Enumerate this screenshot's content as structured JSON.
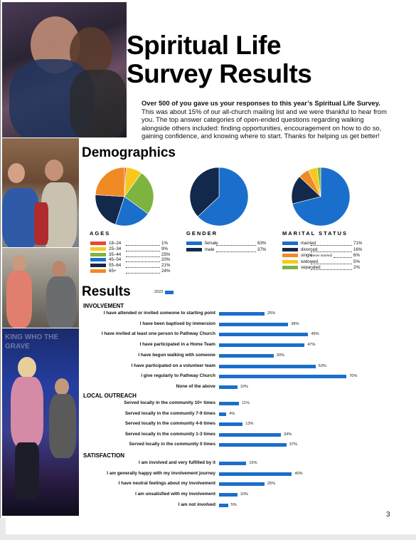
{
  "header": {
    "title_line1": "Spiritual Life",
    "title_line2": "Survey Results",
    "intro_bold": "Over 500 of you gave us your responses to this year’s Spiritual Life Survey.",
    "intro_rest": " This was about 15% of our all-church mailing list and we were thankful to hear from you. The top answer categories of open-ended questions regarding walking alongside others included: finding opportunities, encouragement on how to do so, gaining confidence, and knowing where to start. Thanks for helping us get better!"
  },
  "demographics": {
    "heading": "Demographics",
    "ages": {
      "title": "AGES",
      "items": [
        {
          "label": "18–24",
          "pct": "1%",
          "value": 1,
          "color": "#e9453a"
        },
        {
          "label": "25–34",
          "pct": "9%",
          "value": 9,
          "color": "#f7c81e"
        },
        {
          "label": "35–44",
          "pct": "25%",
          "value": 25,
          "color": "#7cb43f"
        },
        {
          "label": "45–54",
          "pct": "20%",
          "value": 20,
          "color": "#1b6fcc"
        },
        {
          "label": "55–64",
          "pct": "21%",
          "value": 21,
          "color": "#13294b"
        },
        {
          "label": "65+",
          "pct": "24%",
          "value": 24,
          "color": "#f08a24"
        }
      ]
    },
    "gender": {
      "title": "GENDER",
      "items": [
        {
          "label": "female",
          "pct": "63%",
          "value": 63,
          "color": "#1b6fcc"
        },
        {
          "label": "male",
          "pct": "37%",
          "value": 37,
          "color": "#13294b"
        }
      ]
    },
    "marital": {
      "title": "MARITAL STATUS",
      "items": [
        {
          "label": "married",
          "note": "",
          "pct": "71%",
          "value": 71,
          "color": "#1b6fcc"
        },
        {
          "label": "divorced",
          "note": "",
          "pct": "16%",
          "value": 16,
          "color": "#13294b"
        },
        {
          "label": "single",
          "note": "(never married)",
          "pct": "6%",
          "value": 6,
          "color": "#f08a24"
        },
        {
          "label": "widowed",
          "note": "",
          "pct": "5%",
          "value": 5,
          "color": "#f7c81e"
        },
        {
          "label": "separated",
          "note": "",
          "pct": "2%",
          "value": 2,
          "color": "#7cb43f"
        }
      ]
    }
  },
  "results": {
    "heading": "Results",
    "legend_label": "2023",
    "bar_color": "#1b6fcc",
    "sections": [
      {
        "title": "INVOLVEMENT",
        "items": [
          {
            "label": "I have attended or invited someone to starting point",
            "pct": "25%",
            "value": 25
          },
          {
            "label": "I have been baptised by immersion",
            "pct": "38%",
            "value": 38
          },
          {
            "label": "I have invited at least one person to Pathway Church",
            "pct": "49%",
            "value": 49
          },
          {
            "label": "I have participated in a Home Team",
            "pct": "47%",
            "value": 47
          },
          {
            "label": "I have begun walking with someone",
            "pct": "30%",
            "value": 30
          },
          {
            "label": "I have participated on a volunteer team",
            "pct": "53%",
            "value": 53
          },
          {
            "label": "I give regularly to Pathway Church",
            "pct": "70%",
            "value": 70
          },
          {
            "label": "None of the above",
            "pct": "10%",
            "value": 10
          }
        ]
      },
      {
        "title": "LOCAL OUTREACH",
        "items": [
          {
            "label": "Served locally in the community 10+ times",
            "pct": "11%",
            "value": 11
          },
          {
            "label": "Served locally in the community 7-9 times",
            "pct": "4%",
            "value": 4
          },
          {
            "label": "Served locally in the community 4-6 times",
            "pct": "13%",
            "value": 13
          },
          {
            "label": "Served locally in the community 1-3  times",
            "pct": "34%",
            "value": 34
          },
          {
            "label": "Served locally in the community 0 times",
            "pct": "37%",
            "value": 37
          }
        ]
      },
      {
        "title": "SATISFACTION",
        "items": [
          {
            "label": "I am involved and very fulfilled by it",
            "pct": "15%",
            "value": 15
          },
          {
            "label": "I am generally  happy with my involvement journey",
            "pct": "40%",
            "value": 40
          },
          {
            "label": "I have neutral feelings about my involvement",
            "pct": "25%",
            "value": 25
          },
          {
            "label": "I am unsatisfied with my involvement",
            "pct": "10%",
            "value": 10
          },
          {
            "label": "I am not involved",
            "pct": "5%",
            "value": 5
          }
        ]
      }
    ]
  },
  "overlay_text": {
    "stage_banner": "KING WHO  THE GRAVE"
  },
  "page_number": "3"
}
